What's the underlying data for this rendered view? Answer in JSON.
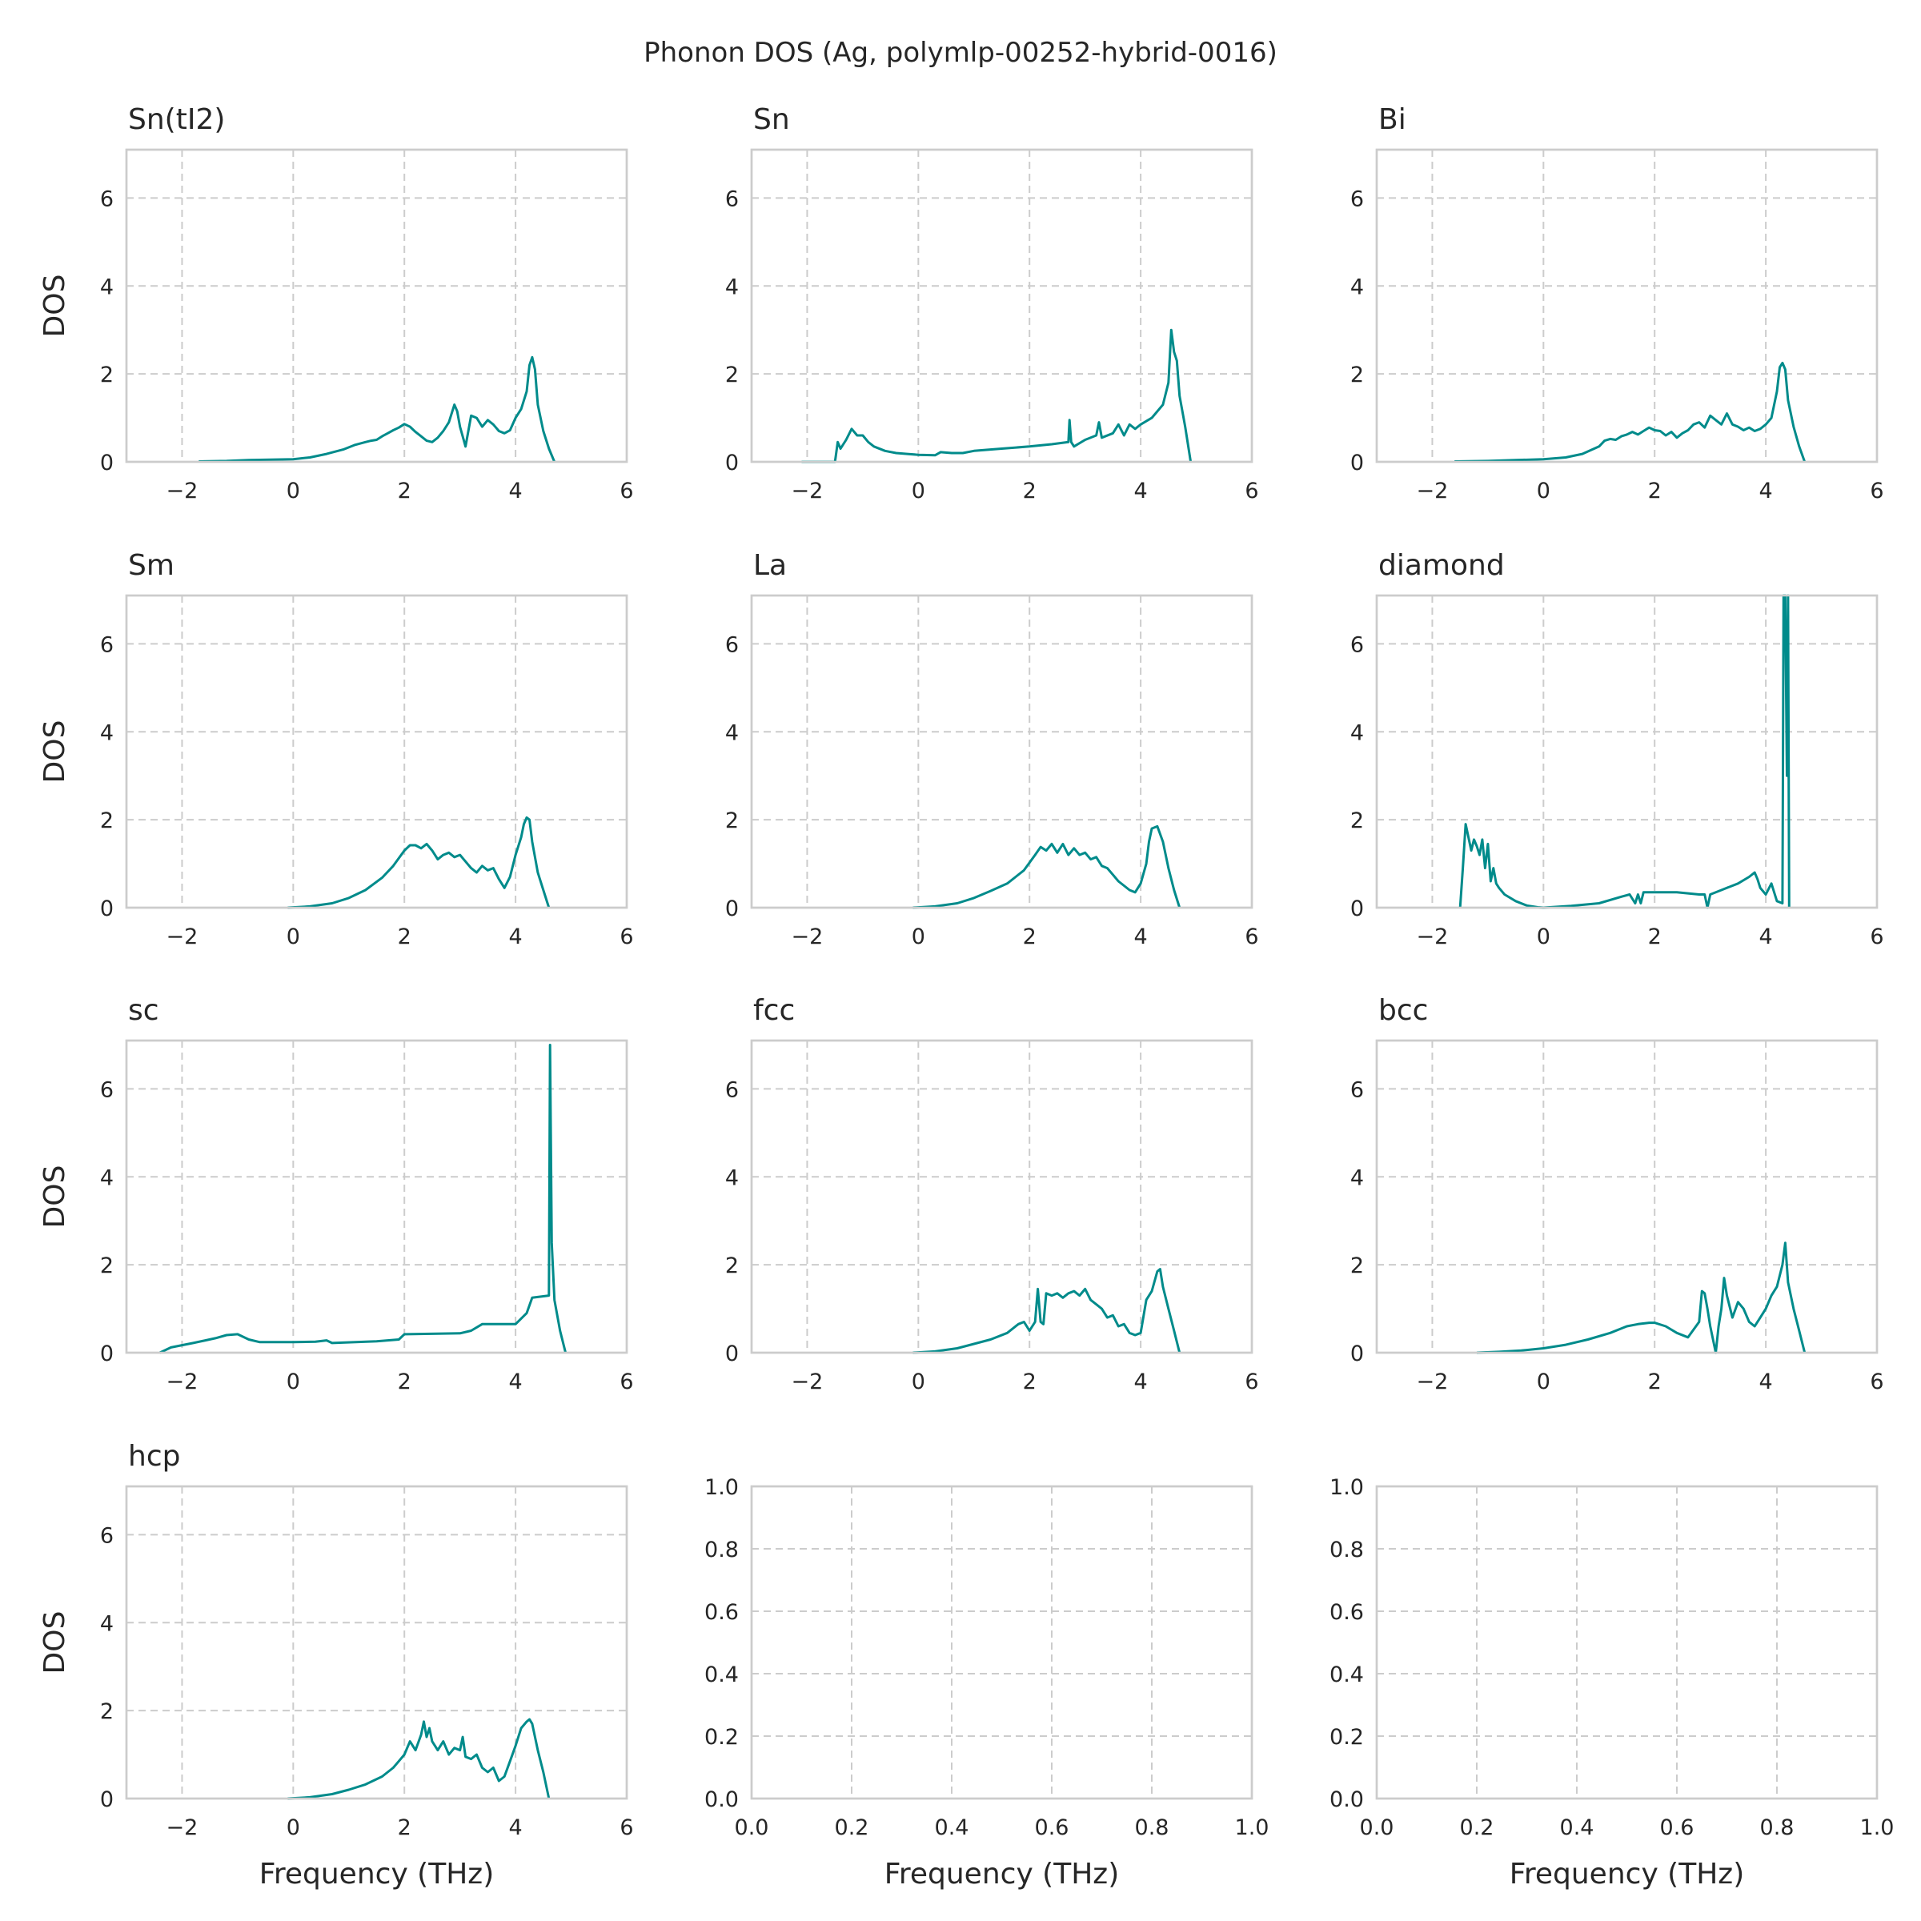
{
  "figure": {
    "suptitle": "Phonon DOS (Ag, polymlp-00252-hybrid-0016)",
    "line_color": "#008b8b"
  },
  "chart_data": [
    {
      "type": "line",
      "title": "Sn(tI2)",
      "xlabel": "",
      "ylabel": "DOS",
      "xlim": [
        -3,
        6
      ],
      "ylim": [
        0,
        7.1
      ],
      "xticks": [
        -2,
        0,
        2,
        4,
        6
      ],
      "xtick_labels": [
        "−2",
        "0",
        "2",
        "4",
        "6"
      ],
      "yticks": [
        0,
        2,
        4,
        6
      ],
      "ytick_labels": [
        "0",
        "2",
        "4",
        "6"
      ],
      "grid": true,
      "x": [
        -1.7,
        -1.2,
        -0.8,
        -0.4,
        0,
        0.3,
        0.6,
        0.9,
        1.1,
        1.3,
        1.4,
        1.5,
        1.6,
        1.7,
        1.8,
        1.9,
        2.0,
        2.1,
        2.2,
        2.3,
        2.4,
        2.5,
        2.6,
        2.7,
        2.8,
        2.9,
        2.95,
        3.0,
        3.1,
        3.2,
        3.3,
        3.4,
        3.5,
        3.6,
        3.7,
        3.8,
        3.9,
        4.0,
        4.1,
        4.2,
        4.25,
        4.3,
        4.35,
        4.4,
        4.5,
        4.6,
        4.7
      ],
      "y": [
        0.01,
        0.02,
        0.04,
        0.05,
        0.06,
        0.1,
        0.18,
        0.28,
        0.38,
        0.45,
        0.48,
        0.5,
        0.58,
        0.65,
        0.72,
        0.78,
        0.86,
        0.8,
        0.68,
        0.58,
        0.48,
        0.45,
        0.55,
        0.7,
        0.9,
        1.3,
        1.15,
        0.8,
        0.35,
        1.05,
        1.0,
        0.8,
        0.95,
        0.85,
        0.7,
        0.65,
        0.72,
        1.0,
        1.2,
        1.6,
        2.2,
        2.38,
        2.1,
        1.3,
        0.7,
        0.3,
        0.0
      ]
    },
    {
      "type": "line",
      "title": "Sn",
      "xlabel": "",
      "ylabel": "",
      "xlim": [
        -3,
        6
      ],
      "ylim": [
        0,
        7.1
      ],
      "xticks": [
        -2,
        0,
        2,
        4,
        6
      ],
      "xtick_labels": [
        "−2",
        "0",
        "2",
        "4",
        "6"
      ],
      "yticks": [
        0,
        2,
        4,
        6
      ],
      "ytick_labels": [
        "0",
        "2",
        "4",
        "6"
      ],
      "grid": true,
      "x": [
        -2.1,
        -1.5,
        -1.45,
        -1.4,
        -1.3,
        -1.2,
        -1.1,
        -1.0,
        -0.9,
        -0.8,
        -0.6,
        -0.4,
        -0.2,
        0,
        0.3,
        0.4,
        0.6,
        0.8,
        1.0,
        1.5,
        2.0,
        2.4,
        2.7,
        2.72,
        2.75,
        2.8,
        3.0,
        3.2,
        3.25,
        3.3,
        3.5,
        3.6,
        3.7,
        3.8,
        3.9,
        4.0,
        4.2,
        4.4,
        4.5,
        4.55,
        4.6,
        4.65,
        4.7,
        4.8,
        4.9
      ],
      "y": [
        0.0,
        0.0,
        0.45,
        0.3,
        0.5,
        0.75,
        0.6,
        0.6,
        0.45,
        0.35,
        0.25,
        0.2,
        0.18,
        0.16,
        0.15,
        0.22,
        0.2,
        0.2,
        0.25,
        0.3,
        0.35,
        0.4,
        0.45,
        0.95,
        0.45,
        0.35,
        0.5,
        0.6,
        0.9,
        0.55,
        0.65,
        0.85,
        0.6,
        0.85,
        0.75,
        0.85,
        1.0,
        1.3,
        1.8,
        3.0,
        2.5,
        2.3,
        1.5,
        0.8,
        0.0
      ]
    },
    {
      "type": "line",
      "title": "Bi",
      "xlabel": "",
      "ylabel": "",
      "xlim": [
        -3,
        6
      ],
      "ylim": [
        0,
        7.1
      ],
      "xticks": [
        -2,
        0,
        2,
        4,
        6
      ],
      "xtick_labels": [
        "−2",
        "0",
        "2",
        "4",
        "6"
      ],
      "yticks": [
        0,
        2,
        4,
        6
      ],
      "ytick_labels": [
        "0",
        "2",
        "4",
        "6"
      ],
      "grid": true,
      "x": [
        -1.6,
        -1.0,
        -0.5,
        0,
        0.4,
        0.7,
        1.0,
        1.1,
        1.2,
        1.3,
        1.4,
        1.5,
        1.6,
        1.7,
        1.8,
        1.9,
        2.0,
        2.1,
        2.2,
        2.3,
        2.4,
        2.5,
        2.6,
        2.7,
        2.8,
        2.9,
        3.0,
        3.1,
        3.2,
        3.3,
        3.4,
        3.5,
        3.6,
        3.7,
        3.8,
        3.9,
        4.0,
        4.1,
        4.2,
        4.25,
        4.3,
        4.35,
        4.4,
        4.5,
        4.6,
        4.7
      ],
      "y": [
        0.01,
        0.02,
        0.04,
        0.06,
        0.1,
        0.18,
        0.35,
        0.48,
        0.52,
        0.5,
        0.58,
        0.62,
        0.68,
        0.62,
        0.7,
        0.78,
        0.72,
        0.7,
        0.6,
        0.68,
        0.55,
        0.65,
        0.72,
        0.85,
        0.9,
        0.78,
        1.05,
        0.95,
        0.85,
        1.1,
        0.85,
        0.8,
        0.72,
        0.78,
        0.7,
        0.75,
        0.85,
        1.0,
        1.6,
        2.15,
        2.25,
        2.1,
        1.4,
        0.8,
        0.35,
        0.0
      ]
    },
    {
      "type": "line",
      "title": "Sm",
      "xlabel": "",
      "ylabel": "DOS",
      "xlim": [
        -3,
        6
      ],
      "ylim": [
        0,
        7.1
      ],
      "xticks": [
        -2,
        0,
        2,
        4,
        6
      ],
      "xtick_labels": [
        "−2",
        "0",
        "2",
        "4",
        "6"
      ],
      "yticks": [
        0,
        2,
        4,
        6
      ],
      "ytick_labels": [
        "0",
        "2",
        "4",
        "6"
      ],
      "grid": true,
      "x": [
        -0.1,
        0.3,
        0.7,
        1.0,
        1.3,
        1.6,
        1.8,
        2.0,
        2.1,
        2.2,
        2.3,
        2.4,
        2.5,
        2.6,
        2.7,
        2.8,
        2.9,
        3.0,
        3.1,
        3.2,
        3.3,
        3.4,
        3.5,
        3.6,
        3.7,
        3.8,
        3.9,
        4.0,
        4.1,
        4.15,
        4.2,
        4.25,
        4.3,
        4.4,
        4.5,
        4.6
      ],
      "y": [
        0.0,
        0.03,
        0.1,
        0.22,
        0.4,
        0.68,
        0.95,
        1.3,
        1.42,
        1.42,
        1.35,
        1.45,
        1.3,
        1.1,
        1.2,
        1.25,
        1.15,
        1.2,
        1.05,
        0.9,
        0.8,
        0.95,
        0.85,
        0.9,
        0.65,
        0.45,
        0.7,
        1.2,
        1.6,
        1.9,
        2.05,
        2.0,
        1.5,
        0.8,
        0.4,
        0.0
      ]
    },
    {
      "type": "line",
      "title": "La",
      "xlabel": "",
      "ylabel": "",
      "xlim": [
        -3,
        6
      ],
      "ylim": [
        0,
        7.1
      ],
      "xticks": [
        -2,
        0,
        2,
        4,
        6
      ],
      "xtick_labels": [
        "−2",
        "0",
        "2",
        "4",
        "6"
      ],
      "yticks": [
        0,
        2,
        4,
        6
      ],
      "ytick_labels": [
        "0",
        "2",
        "4",
        "6"
      ],
      "grid": true,
      "x": [
        -0.1,
        0.3,
        0.7,
        1.0,
        1.3,
        1.6,
        1.9,
        2.1,
        2.2,
        2.3,
        2.4,
        2.5,
        2.6,
        2.7,
        2.8,
        2.9,
        3.0,
        3.1,
        3.2,
        3.3,
        3.4,
        3.5,
        3.6,
        3.7,
        3.8,
        3.9,
        4.0,
        4.1,
        4.15,
        4.2,
        4.3,
        4.4,
        4.5,
        4.6,
        4.7
      ],
      "y": [
        0.0,
        0.03,
        0.1,
        0.22,
        0.38,
        0.55,
        0.85,
        1.2,
        1.38,
        1.3,
        1.45,
        1.25,
        1.45,
        1.2,
        1.35,
        1.2,
        1.25,
        1.1,
        1.15,
        0.95,
        0.9,
        0.75,
        0.6,
        0.5,
        0.4,
        0.35,
        0.55,
        1.0,
        1.5,
        1.8,
        1.85,
        1.5,
        0.9,
        0.4,
        0.0
      ]
    },
    {
      "type": "line",
      "title": "diamond",
      "xlabel": "",
      "ylabel": "",
      "xlim": [
        -3,
        6
      ],
      "ylim": [
        0,
        7.1
      ],
      "xticks": [
        -2,
        0,
        2,
        4,
        6
      ],
      "xtick_labels": [
        "−2",
        "0",
        "2",
        "4",
        "6"
      ],
      "yticks": [
        0,
        2,
        4,
        6
      ],
      "ytick_labels": [
        "0",
        "2",
        "4",
        "6"
      ],
      "grid": true,
      "x": [
        -1.5,
        -1.45,
        -1.4,
        -1.35,
        -1.3,
        -1.25,
        -1.2,
        -1.15,
        -1.1,
        -1.05,
        -1.0,
        -0.95,
        -0.9,
        -0.85,
        -0.8,
        -0.7,
        -0.5,
        -0.3,
        -0.1,
        0,
        0.5,
        1.0,
        1.4,
        1.55,
        1.65,
        1.7,
        1.75,
        1.8,
        2.0,
        2.4,
        2.8,
        2.9,
        2.95,
        3.0,
        3.2,
        3.5,
        3.7,
        3.8,
        3.85,
        3.9,
        4.0,
        4.1,
        4.2,
        4.3,
        4.32,
        4.35,
        4.38,
        4.4,
        4.42
      ],
      "y": [
        0.0,
        0.9,
        1.9,
        1.6,
        1.3,
        1.55,
        1.4,
        1.2,
        1.55,
        0.9,
        1.45,
        0.6,
        0.9,
        0.55,
        0.45,
        0.3,
        0.15,
        0.05,
        0.01,
        0.0,
        0.04,
        0.1,
        0.25,
        0.3,
        0.1,
        0.3,
        0.1,
        0.35,
        0.35,
        0.35,
        0.3,
        0.3,
        0.0,
        0.3,
        0.4,
        0.55,
        0.7,
        0.8,
        0.65,
        0.45,
        0.3,
        0.55,
        0.15,
        0.1,
        7.1,
        7.1,
        3.0,
        7.1,
        0.0
      ]
    },
    {
      "type": "line",
      "title": "sc",
      "xlabel": "",
      "ylabel": "DOS",
      "xlim": [
        -3,
        6
      ],
      "ylim": [
        0,
        7.1
      ],
      "xticks": [
        -2,
        0,
        2,
        4,
        6
      ],
      "xtick_labels": [
        "−2",
        "0",
        "2",
        "4",
        "6"
      ],
      "yticks": [
        0,
        2,
        4,
        6
      ],
      "ytick_labels": [
        "0",
        "2",
        "4",
        "6"
      ],
      "grid": true,
      "x": [
        -2.4,
        -2.2,
        -1.8,
        -1.4,
        -1.2,
        -1.0,
        -0.8,
        -0.6,
        0,
        0.4,
        0.6,
        0.7,
        1.5,
        1.9,
        2.0,
        3.0,
        3.2,
        3.4,
        4.0,
        4.2,
        4.3,
        4.6,
        4.62,
        4.65,
        4.7,
        4.8,
        4.9
      ],
      "y": [
        0.0,
        0.12,
        0.22,
        0.33,
        0.4,
        0.42,
        0.3,
        0.24,
        0.24,
        0.25,
        0.28,
        0.22,
        0.26,
        0.3,
        0.42,
        0.44,
        0.5,
        0.65,
        0.65,
        0.9,
        1.25,
        1.3,
        7.0,
        2.5,
        1.2,
        0.5,
        0.0
      ]
    },
    {
      "type": "line",
      "title": "fcc",
      "xlabel": "",
      "ylabel": "",
      "xlim": [
        -3,
        6
      ],
      "ylim": [
        0,
        7.1
      ],
      "xticks": [
        -2,
        0,
        2,
        4,
        6
      ],
      "xtick_labels": [
        "−2",
        "0",
        "2",
        "4",
        "6"
      ],
      "yticks": [
        0,
        2,
        4,
        6
      ],
      "ytick_labels": [
        "0",
        "2",
        "4",
        "6"
      ],
      "grid": true,
      "x": [
        -0.1,
        0.3,
        0.7,
        1.0,
        1.3,
        1.6,
        1.8,
        1.9,
        2.0,
        2.1,
        2.15,
        2.2,
        2.25,
        2.3,
        2.4,
        2.5,
        2.6,
        2.7,
        2.8,
        2.9,
        3.0,
        3.1,
        3.2,
        3.3,
        3.4,
        3.5,
        3.6,
        3.7,
        3.8,
        3.9,
        4.0,
        4.1,
        4.2,
        4.3,
        4.35,
        4.4,
        4.5,
        4.6,
        4.7
      ],
      "y": [
        0.0,
        0.03,
        0.1,
        0.2,
        0.3,
        0.45,
        0.65,
        0.7,
        0.5,
        0.7,
        1.45,
        0.7,
        0.65,
        1.35,
        1.3,
        1.35,
        1.25,
        1.35,
        1.4,
        1.3,
        1.45,
        1.2,
        1.1,
        1.0,
        0.8,
        0.85,
        0.6,
        0.65,
        0.45,
        0.4,
        0.45,
        1.2,
        1.4,
        1.85,
        1.9,
        1.5,
        1.0,
        0.5,
        0.0
      ]
    },
    {
      "type": "line",
      "title": "bcc",
      "xlabel": "",
      "ylabel": "",
      "xlim": [
        -3,
        6
      ],
      "ylim": [
        0,
        7.1
      ],
      "xticks": [
        -2,
        0,
        2,
        4,
        6
      ],
      "xtick_labels": [
        "−2",
        "0",
        "2",
        "4",
        "6"
      ],
      "yticks": [
        0,
        2,
        4,
        6
      ],
      "ytick_labels": [
        "0",
        "2",
        "4",
        "6"
      ],
      "grid": true,
      "x": [
        -1.2,
        -0.8,
        -0.4,
        0,
        0.4,
        0.8,
        1.2,
        1.5,
        1.7,
        1.9,
        2.0,
        2.2,
        2.4,
        2.6,
        2.8,
        2.85,
        2.9,
        2.95,
        3.0,
        3.1,
        3.15,
        3.2,
        3.25,
        3.3,
        3.4,
        3.5,
        3.6,
        3.7,
        3.8,
        3.9,
        4.0,
        4.1,
        4.2,
        4.3,
        4.35,
        4.4,
        4.5,
        4.6,
        4.7
      ],
      "y": [
        0.0,
        0.02,
        0.05,
        0.1,
        0.18,
        0.3,
        0.45,
        0.6,
        0.65,
        0.68,
        0.68,
        0.6,
        0.45,
        0.35,
        0.7,
        1.4,
        1.35,
        1.0,
        0.6,
        0.0,
        0.6,
        1.0,
        1.7,
        1.3,
        0.8,
        1.15,
        1.0,
        0.7,
        0.6,
        0.8,
        1.0,
        1.3,
        1.5,
        2.0,
        2.5,
        1.6,
        1.0,
        0.5,
        0.0
      ]
    },
    {
      "type": "line",
      "title": "hcp",
      "xlabel": "Frequency (THz)",
      "ylabel": "DOS",
      "xlim": [
        -3,
        6
      ],
      "ylim": [
        0,
        7.1
      ],
      "xticks": [
        -2,
        0,
        2,
        4,
        6
      ],
      "xtick_labels": [
        "−2",
        "0",
        "2",
        "4",
        "6"
      ],
      "yticks": [
        0,
        2,
        4,
        6
      ],
      "ytick_labels": [
        "0",
        "2",
        "4",
        "6"
      ],
      "grid": true,
      "x": [
        -0.1,
        0.3,
        0.7,
        1.0,
        1.3,
        1.6,
        1.8,
        1.9,
        2.0,
        2.1,
        2.2,
        2.3,
        2.35,
        2.4,
        2.45,
        2.5,
        2.6,
        2.7,
        2.8,
        2.9,
        3.0,
        3.05,
        3.1,
        3.2,
        3.3,
        3.4,
        3.5,
        3.6,
        3.7,
        3.8,
        3.9,
        4.0,
        4.1,
        4.2,
        4.25,
        4.3,
        4.4,
        4.5,
        4.6
      ],
      "y": [
        0.0,
        0.03,
        0.1,
        0.2,
        0.32,
        0.5,
        0.7,
        0.85,
        1.0,
        1.3,
        1.1,
        1.45,
        1.75,
        1.4,
        1.6,
        1.3,
        1.1,
        1.3,
        1.0,
        1.15,
        1.1,
        1.4,
        0.95,
        0.9,
        1.0,
        0.7,
        0.6,
        0.7,
        0.4,
        0.5,
        0.85,
        1.2,
        1.6,
        1.75,
        1.8,
        1.7,
        1.1,
        0.6,
        0.0
      ]
    },
    {
      "type": "line",
      "title": "",
      "xlabel": "Frequency (THz)",
      "ylabel": "",
      "xlim": [
        0,
        1
      ],
      "ylim": [
        0,
        1
      ],
      "xticks": [
        0,
        0.2,
        0.4,
        0.6,
        0.8,
        1.0
      ],
      "xtick_labels": [
        "0.0",
        "0.2",
        "0.4",
        "0.6",
        "0.8",
        "1.0"
      ],
      "yticks": [
        0,
        0.2,
        0.4,
        0.6,
        0.8,
        1.0
      ],
      "ytick_labels": [
        "0.0",
        "0.2",
        "0.4",
        "0.6",
        "0.8",
        "1.0"
      ],
      "grid": true,
      "x": [],
      "y": []
    },
    {
      "type": "line",
      "title": "",
      "xlabel": "Frequency (THz)",
      "ylabel": "",
      "xlim": [
        0,
        1
      ],
      "ylim": [
        0,
        1
      ],
      "xticks": [
        0,
        0.2,
        0.4,
        0.6,
        0.8,
        1.0
      ],
      "xtick_labels": [
        "0.0",
        "0.2",
        "0.4",
        "0.6",
        "0.8",
        "1.0"
      ],
      "yticks": [
        0,
        0.2,
        0.4,
        0.6,
        0.8,
        1.0
      ],
      "ytick_labels": [
        "0.0",
        "0.2",
        "0.4",
        "0.6",
        "0.8",
        "1.0"
      ],
      "grid": true,
      "x": [],
      "y": []
    }
  ]
}
